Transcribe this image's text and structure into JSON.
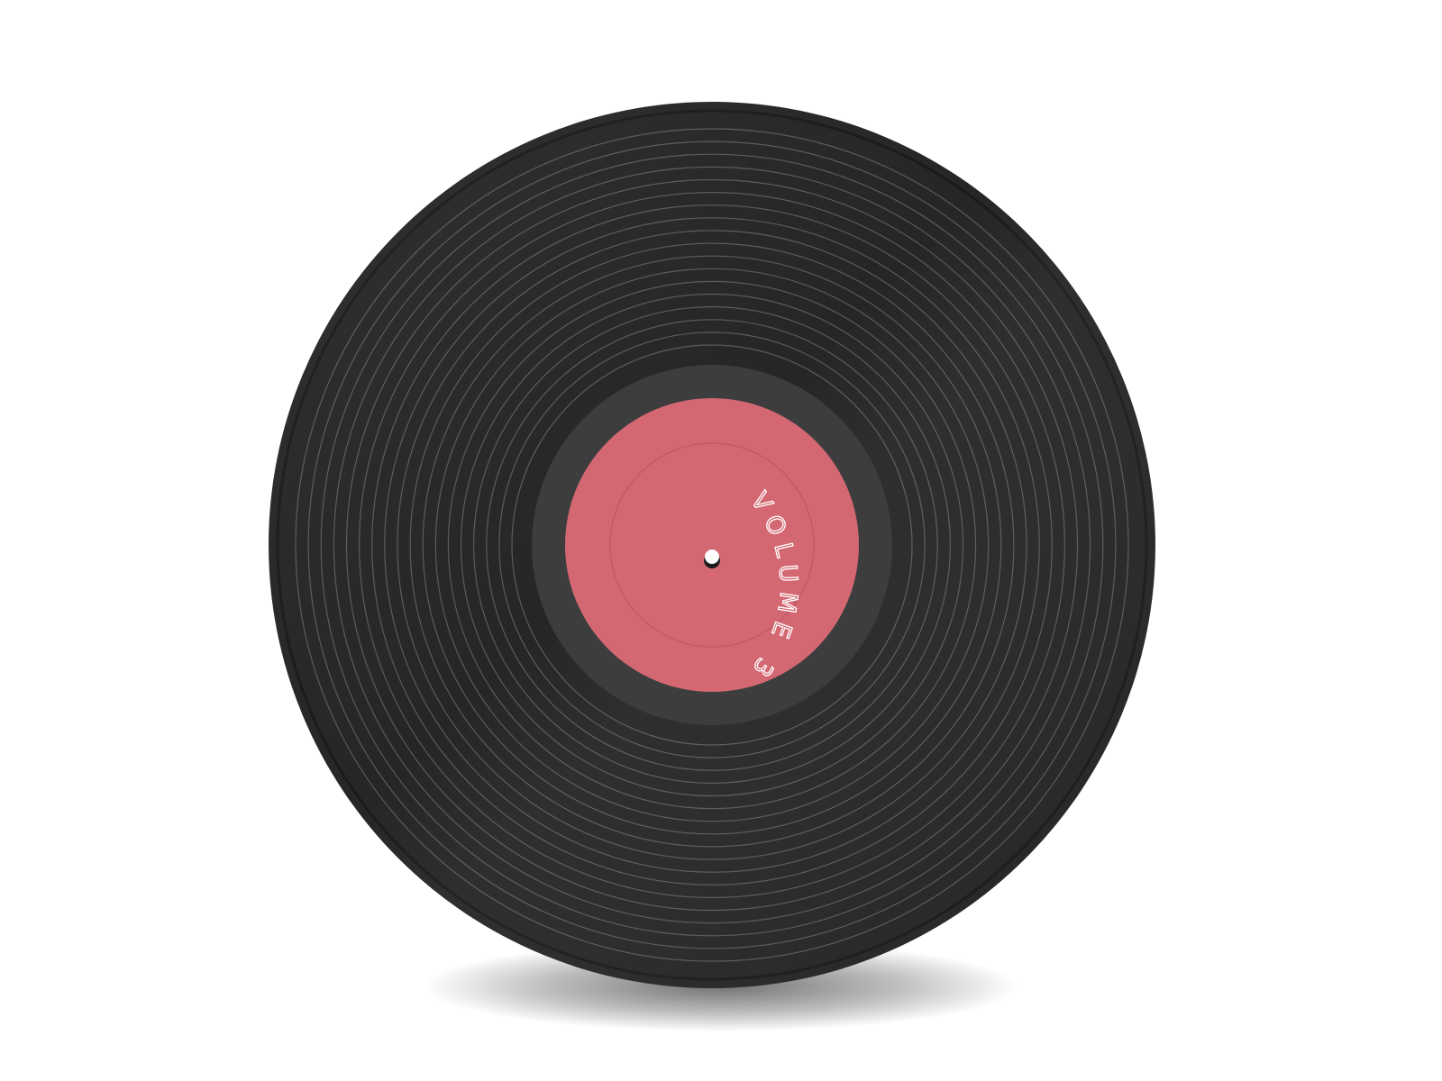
{
  "record": {
    "label_text": "VOLUME 3",
    "colors": {
      "background": "#ffffff",
      "vinyl": "#262626",
      "vinyl_edge": "#1a1a1a",
      "groove": "#5a5a5a",
      "dead_wax": "#3d3d3d",
      "label": "#d46872",
      "label_ring": "#c25a65",
      "label_text": "#ffffff",
      "spindle": "#ffffff"
    },
    "groove_count": 18
  }
}
